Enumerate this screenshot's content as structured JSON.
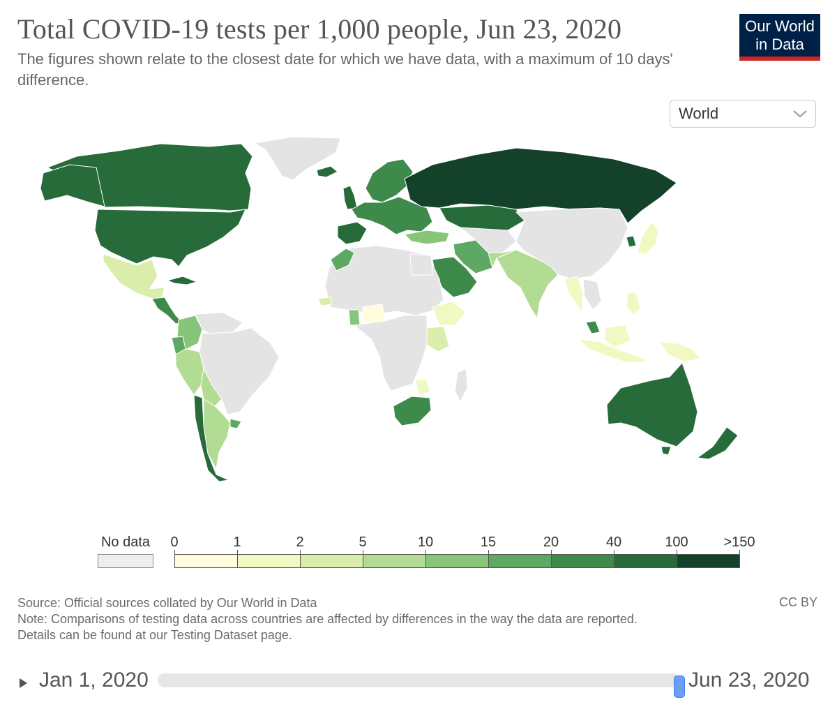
{
  "header": {
    "title": "Total COVID-19 tests per 1,000 people, Jun 23, 2020",
    "subtitle": "The figures shown relate to the closest date for which we have data, with a maximum of 10 days' difference."
  },
  "logo": {
    "line1": "Our World",
    "line2": "in Data",
    "background": "#002147",
    "accent": "#ce261e"
  },
  "controls": {
    "region_selected": "World",
    "chevron_icon": "chevron-down-icon"
  },
  "legend": {
    "no_data_label": "No data",
    "no_data_color": "#eeeeee",
    "tick_labels": [
      "0",
      "1",
      "2",
      "5",
      "10",
      "15",
      "20",
      "40",
      "100",
      ">150"
    ],
    "colors": [
      "#fffddd",
      "#f2f8c1",
      "#dbedaa",
      "#b2db93",
      "#87c57a",
      "#5da964",
      "#3d8a4b",
      "#266b39",
      "#13412a"
    ]
  },
  "footer": {
    "source": "Source: Official sources collated by Our World in Data",
    "note": "Note: Comparisons of testing data across countries are affected by differences in the way the data are reported.",
    "details": "Details can be found at our Testing Dataset page.",
    "license": "CC BY"
  },
  "timeline": {
    "start": "Jan 1, 2020",
    "end": "Jun 23, 2020",
    "position": 1.0
  }
}
